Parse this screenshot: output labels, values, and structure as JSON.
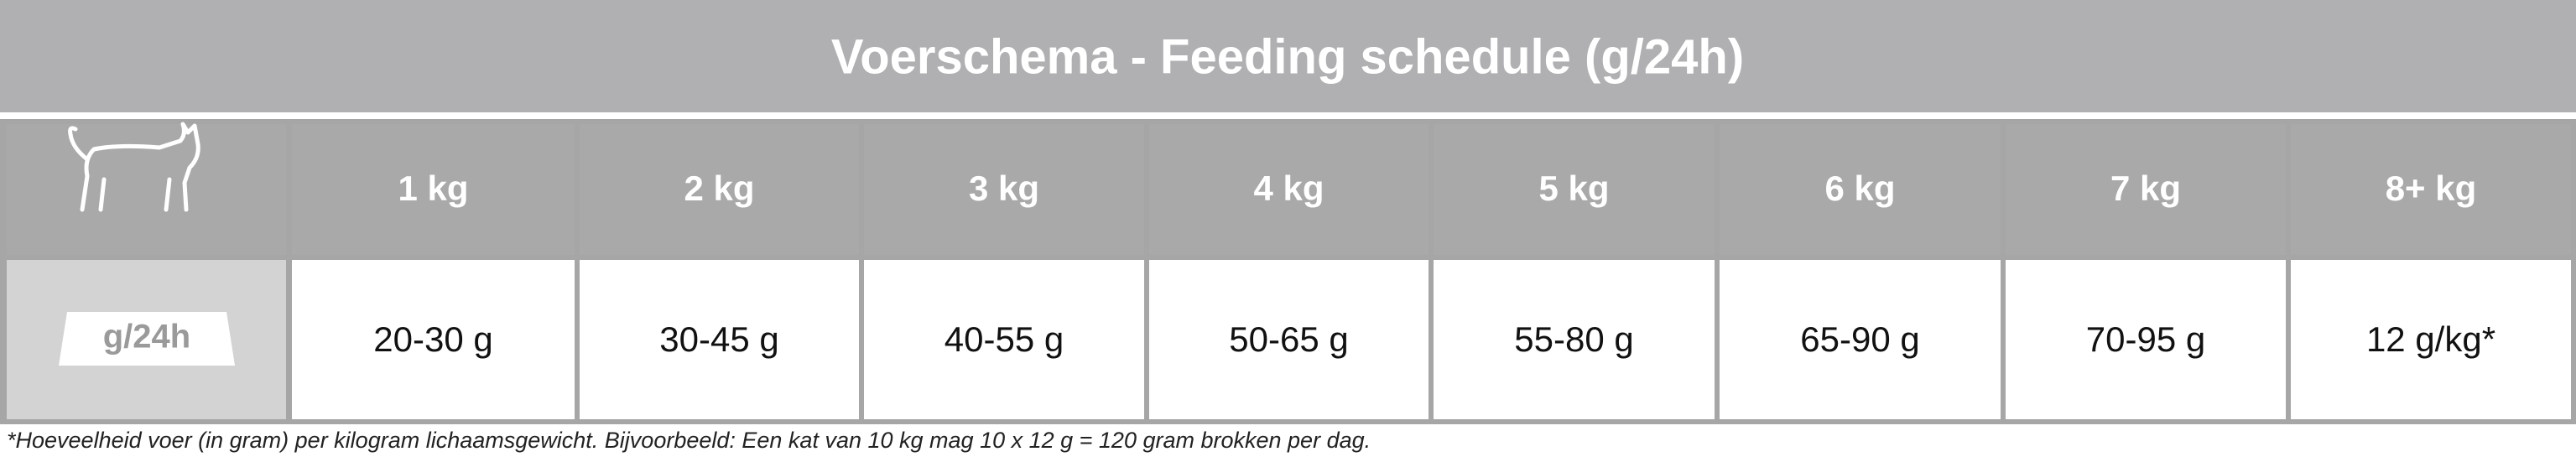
{
  "header": {
    "title": "Voerschema - Feeding schedule (g/24h)"
  },
  "table": {
    "columns": [
      "1 kg",
      "2 kg",
      "3 kg",
      "4 kg",
      "5 kg",
      "6 kg",
      "7 kg",
      "8+ kg"
    ],
    "row_label": "g/24h",
    "values": [
      "20-30 g",
      "30-45 g",
      "40-55 g",
      "50-65 g",
      "55-80 g",
      "65-90 g",
      "70-95 g",
      "12 g/kg*"
    ]
  },
  "footnote": "*Hoeveelheid voer (in gram) per kilogram lichaamsgewicht. Bijvoorbeeld: Een kat van 10 kg mag 10 x 12 g = 120 gram brokken per dag."
}
